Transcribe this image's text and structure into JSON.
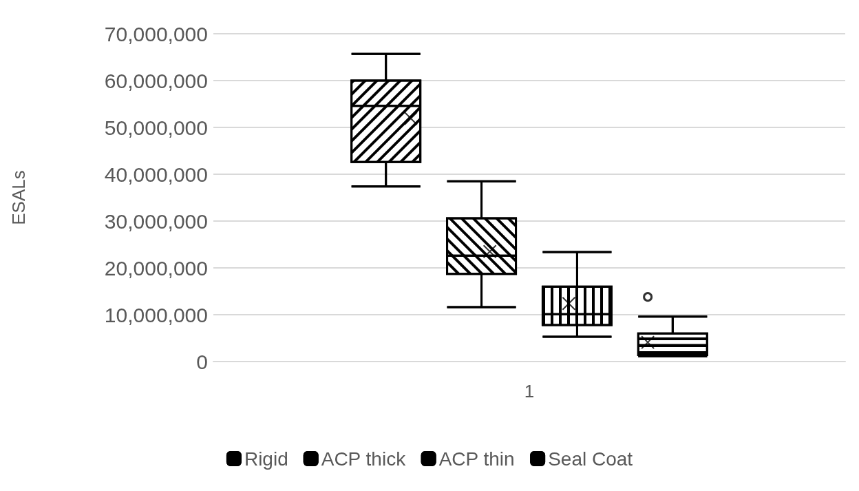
{
  "chart_data": {
    "type": "box",
    "ylabel": "ESALs",
    "categories": [
      "1"
    ],
    "ylim": [
      0,
      70000000
    ],
    "yticks": [
      {
        "value": 0,
        "label": "0"
      },
      {
        "value": 10000000,
        "label": "10,000,000"
      },
      {
        "value": 20000000,
        "label": "20,000,000"
      },
      {
        "value": 30000000,
        "label": "30,000,000"
      },
      {
        "value": 40000000,
        "label": "40,000,000"
      },
      {
        "value": 50000000,
        "label": "50,000,000"
      },
      {
        "value": 60000000,
        "label": "60,000,000"
      },
      {
        "value": 70000000,
        "label": "70,000,000"
      }
    ],
    "grid": "y",
    "legend": "bottom",
    "series": [
      {
        "name": "Rigid",
        "color": "#000000",
        "boxes": [
          {
            "low": 37400000,
            "q1": 42600000,
            "median": 54600000,
            "q3": 60000000,
            "high": 65700000,
            "mean": 51900000
          }
        ]
      },
      {
        "name": "ACP thick",
        "color": "#000000",
        "boxes": [
          {
            "low": 11600000,
            "q1": 18700000,
            "median": 22600000,
            "q3": 30600000,
            "high": 38500000,
            "mean": 23500000
          }
        ]
      },
      {
        "name": "ACP thin",
        "color": "#000000",
        "boxes": [
          {
            "low": 5300000,
            "q1": 7800000,
            "median": 10100000,
            "q3": 16000000,
            "high": 23400000,
            "mean": 12400000
          }
        ]
      },
      {
        "name": "Seal Coat",
        "color": "#000000",
        "boxes": [
          {
            "low": 1100000,
            "q1": 1400000,
            "median": 3500000,
            "q3": 6000000,
            "high": 9600000,
            "mean": 4100000,
            "outliers": [
              13800000
            ]
          }
        ]
      }
    ]
  }
}
